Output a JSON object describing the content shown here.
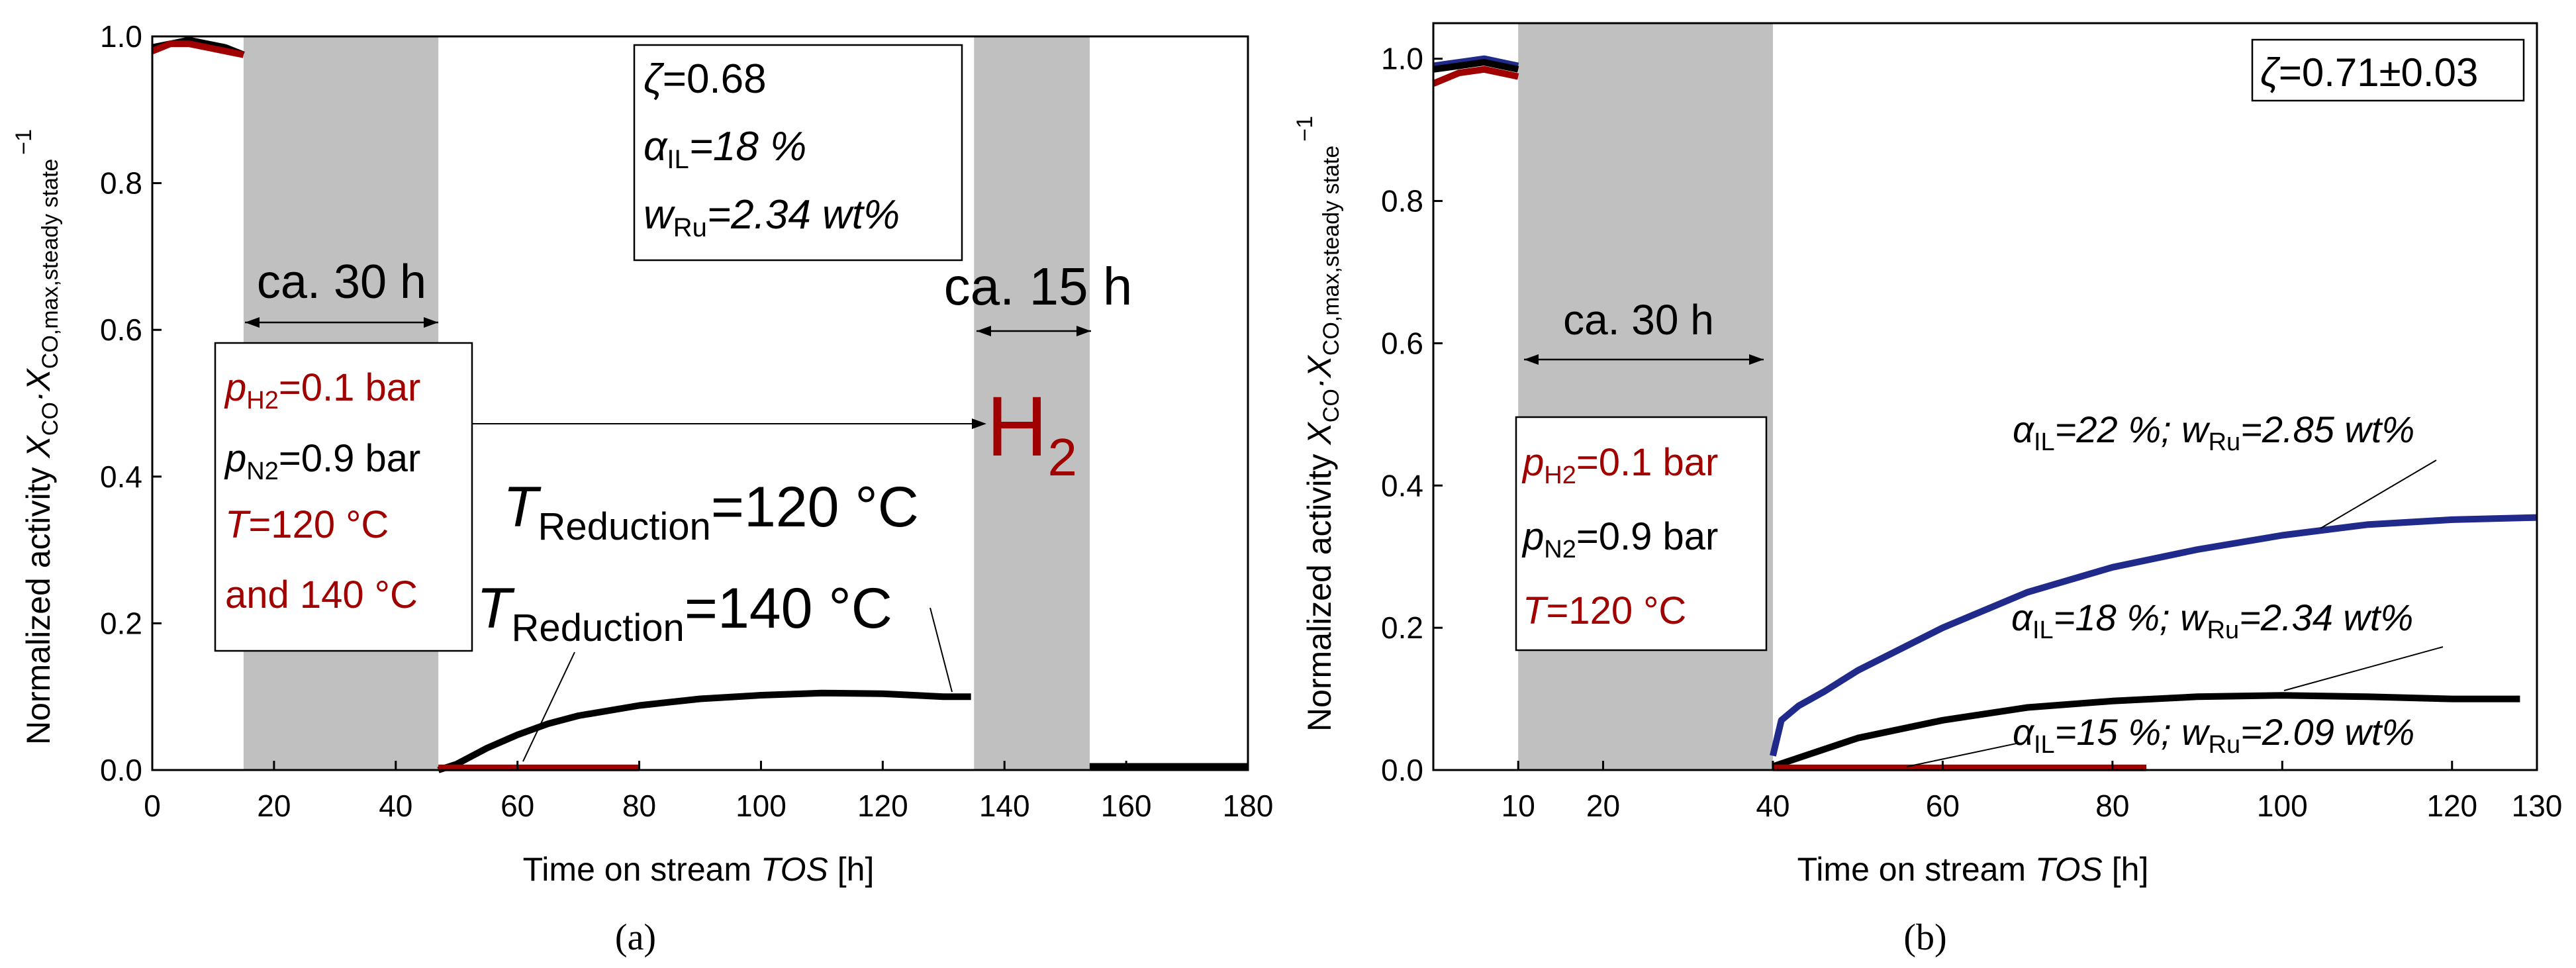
{
  "colors": {
    "black": "#000000",
    "red": "#a00000",
    "blue": "#1f2a8a",
    "shade": "#c0c0c0",
    "white": "#ffffff"
  },
  "chart_data": [
    {
      "id": "a",
      "type": "line",
      "panel_label": "(a)",
      "xlabel_prefix": "Time on stream ",
      "xlabel_italic": "TOS",
      "xlabel_suffix": " [h]",
      "ylabel_prefix": "Normalized activity ",
      "ylabel_formula_x1": "X",
      "ylabel_formula_sub1": "CO",
      "ylabel_formula_mid": "·X",
      "ylabel_formula_sub2": "CO,max,steady state",
      "ylabel_formula_sup": "−1",
      "xlim": [
        0,
        180
      ],
      "ylim": [
        0,
        1.0
      ],
      "xticks": [
        0,
        20,
        40,
        60,
        80,
        100,
        120,
        140,
        160,
        180
      ],
      "xtick_labels": [
        "0",
        "20",
        "40",
        "60",
        "80",
        "100",
        "120",
        "140",
        "160",
        "180"
      ],
      "yticks": [
        0.0,
        0.2,
        0.4,
        0.6,
        0.8,
        1.0
      ],
      "ytick_labels": [
        "0.0",
        "0.2",
        "0.4",
        "0.6",
        "0.8",
        "1.0"
      ],
      "shaded_regions": [
        {
          "x0": 15,
          "x1": 47,
          "label": "ca. 30 h"
        },
        {
          "x0": 135,
          "x1": 154,
          "label": "ca. 15 h"
        }
      ],
      "series": [
        {
          "name": "T_Reduction = 140 °C (black)",
          "color": "black",
          "x": [
            0,
            3,
            6,
            9,
            12,
            15,
            47,
            50,
            55,
            60,
            65,
            70,
            80,
            90,
            100,
            110,
            120,
            130,
            134.5,
            154,
            160,
            170,
            180
          ],
          "y": [
            0.985,
            0.99,
            0.995,
            0.99,
            0.985,
            0.975,
            0.0,
            0.008,
            0.03,
            0.048,
            0.063,
            0.074,
            0.088,
            0.097,
            0.102,
            0.105,
            0.104,
            0.1,
            0.1,
            0.005,
            0.005,
            0.005,
            0.005
          ],
          "breaks": [
            6,
            19
          ]
        },
        {
          "name": "T_Reduction = 120 °C (red)",
          "color": "red",
          "x": [
            0,
            3,
            6,
            9,
            12,
            15,
            47,
            55,
            60,
            70,
            80
          ],
          "y": [
            0.98,
            0.99,
            0.99,
            0.985,
            0.98,
            0.975,
            0.003,
            0.003,
            0.003,
            0.003,
            0.003
          ],
          "breaks": [
            6
          ]
        }
      ],
      "annotations": {
        "conditions_box": {
          "zeta_symbol": "ζ",
          "zeta_value": "=0.68",
          "alpha_symbol": "α",
          "alpha_sub": "IL",
          "alpha_value": "=18 %",
          "w_symbol": "w",
          "w_sub": "Ru",
          "w_value": "=2.34 wt%"
        },
        "gas_box": {
          "pH2_symbol": "p",
          "pH2_sub": "H2",
          "pH2_value": "=0.1 bar",
          "pN2_symbol": "p",
          "pN2_sub": "N2",
          "pN2_value": "=0.9 bar",
          "T_symbol": "T",
          "T_value": "=120 °C",
          "T_value2": "and 140 °C"
        },
        "h2_label_main": "H",
        "h2_label_sub": "2",
        "label_120_symbol": "T",
        "label_120_sub": "Reduction",
        "label_120_value": "=120 °C",
        "label_140_symbol": "T",
        "label_140_sub": "Reduction",
        "label_140_value": "=140 °C"
      }
    },
    {
      "id": "b",
      "type": "line",
      "panel_label": "(b)",
      "xlabel_prefix": "Time on stream ",
      "xlabel_italic": "TOS",
      "xlabel_suffix": " [h]",
      "ylabel_prefix": "Normalized activity ",
      "ylabel_formula_x1": "X",
      "ylabel_formula_sub1": "CO",
      "ylabel_formula_mid": "·X",
      "ylabel_formula_sub2": "CO,max,steady state",
      "ylabel_formula_sup": "−1",
      "xlim": [
        0,
        130
      ],
      "ylim": [
        0,
        1.05
      ],
      "xticks": [
        10,
        20,
        40,
        60,
        80,
        100,
        120,
        130
      ],
      "xtick_labels": [
        "10",
        "20",
        "40",
        "60",
        "80",
        "100",
        "120",
        "130"
      ],
      "yticks": [
        0.0,
        0.2,
        0.4,
        0.6,
        0.8,
        1.0
      ],
      "ytick_labels": [
        "0.0",
        "0.2",
        "0.4",
        "0.6",
        "0.8",
        "1.0"
      ],
      "shaded_regions": [
        {
          "x0": 10,
          "x1": 40,
          "label": "ca. 30 h"
        }
      ],
      "series": [
        {
          "name": "αIL=22 %; wRu=2.85 wt%",
          "color": "blue",
          "x": [
            0,
            3,
            6,
            8,
            10,
            40,
            41,
            43,
            46,
            50,
            55,
            60,
            70,
            80,
            90,
            100,
            110,
            120,
            130
          ],
          "y": [
            0.99,
            0.995,
            1.0,
            0.995,
            0.99,
            0.02,
            0.07,
            0.09,
            0.11,
            0.14,
            0.17,
            0.2,
            0.25,
            0.285,
            0.31,
            0.33,
            0.345,
            0.352,
            0.355
          ],
          "breaks": [
            5
          ]
        },
        {
          "name": "αIL=18 %; wRu=2.34 wt%",
          "color": "black",
          "x": [
            0,
            3,
            6,
            8,
            10,
            40,
            45,
            50,
            60,
            70,
            80,
            90,
            100,
            110,
            120,
            128
          ],
          "y": [
            0.985,
            0.99,
            0.995,
            0.99,
            0.985,
            0.005,
            0.025,
            0.045,
            0.07,
            0.088,
            0.097,
            0.103,
            0.105,
            0.103,
            0.1,
            0.1
          ],
          "breaks": [
            5
          ]
        },
        {
          "name": "αIL=15 %; wRu=2.09 wt%",
          "color": "red",
          "x": [
            0,
            3,
            6,
            8,
            10,
            40,
            50,
            60,
            70,
            84
          ],
          "y": [
            0.965,
            0.98,
            0.985,
            0.98,
            0.975,
            0.003,
            0.003,
            0.003,
            0.003,
            0.003
          ],
          "breaks": [
            5
          ]
        }
      ],
      "annotations": {
        "zeta_symbol": "ζ",
        "zeta_value": "=0.71±0.03",
        "gas_box": {
          "pH2_symbol": "p",
          "pH2_sub": "H2",
          "pH2_value": "=0.1 bar",
          "pN2_symbol": "p",
          "pN2_sub": "N2",
          "pN2_value": "=0.9 bar",
          "T_symbol": "T",
          "T_value": "=120 °C"
        },
        "label_22": {
          "a_sym": "α",
          "a_sub": "IL",
          "a_val": "=22 %; ",
          "w_sym": "w",
          "w_sub": "Ru",
          "w_val": "=2.85 wt%"
        },
        "label_18": {
          "a_sym": "α",
          "a_sub": "IL",
          "a_val": "=18 %; ",
          "w_sym": "w",
          "w_sub": "Ru",
          "w_val": "=2.34 wt%"
        },
        "label_15": {
          "a_sym": "α",
          "a_sub": "IL",
          "a_val": "=15 %; ",
          "w_sym": "w",
          "w_sub": "Ru",
          "w_val": "=2.09 wt%"
        }
      }
    }
  ]
}
